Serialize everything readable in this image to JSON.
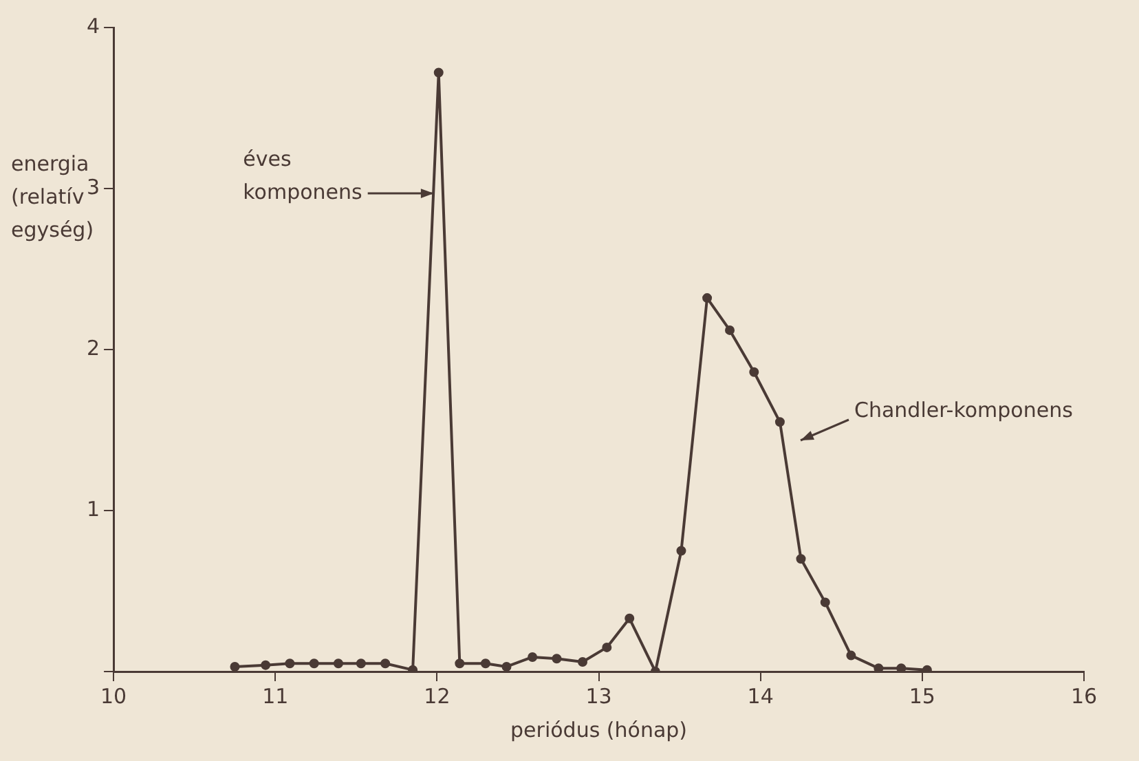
{
  "chart_data": {
    "type": "line",
    "xlabel": "periódus (hónap)",
    "ylabel": "energia (relatív egység)",
    "x": [
      10.75,
      10.94,
      11.09,
      11.24,
      11.39,
      11.53,
      11.68,
      11.85,
      12.01,
      12.14,
      12.3,
      12.43,
      12.59,
      12.74,
      12.9,
      13.05,
      13.19,
      13.35,
      13.51,
      13.67,
      13.81,
      13.96,
      14.12,
      14.25,
      14.4,
      14.56,
      14.73,
      14.87,
      15.03
    ],
    "series": [
      {
        "color": "#4a3a35",
        "values": [
          0.03,
          0.04,
          0.05,
          0.05,
          0.05,
          0.05,
          0.05,
          0.01,
          3.72,
          0.05,
          0.05,
          0.03,
          0.09,
          0.08,
          0.06,
          0.15,
          0.33,
          0,
          0.75,
          2.32,
          2.12,
          1.86,
          1.55,
          0.7,
          0.43,
          0.1,
          0.02,
          0.02,
          0.01
        ]
      }
    ],
    "xlim": [
      10,
      16
    ],
    "xticks": [
      10,
      11,
      12,
      13,
      14,
      15,
      16
    ],
    "ylim": [
      0,
      4
    ],
    "yticks": [
      {
        "value": 0,
        "label": null
      },
      1,
      2,
      3,
      4
    ],
    "annotations": [
      {
        "text": "éves komponens",
        "x": 11.98,
        "y": 2.97
      },
      "Chandler-komponens"
    ],
    "grid": false,
    "legend": false,
    "marker": "circle",
    "line_style": "solid"
  }
}
